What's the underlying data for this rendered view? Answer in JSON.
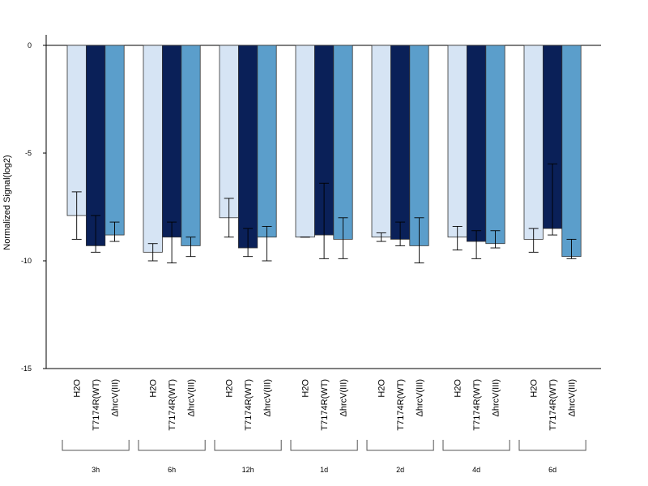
{
  "chart_data": {
    "type": "bar",
    "ylabel": "Normalized Signal(log2)",
    "ylim": [
      -15,
      0.5
    ],
    "yticks": [
      0,
      -5,
      -10,
      -15
    ],
    "grid": false,
    "legend": "none",
    "groups": [
      "3h",
      "6h",
      "12h",
      "1d",
      "2d",
      "4d",
      "6d"
    ],
    "series": [
      {
        "name": "H2O",
        "color": "#d6e4f4",
        "values": [
          -7.9,
          -9.6,
          -8.0,
          -8.9,
          -8.9,
          -8.9,
          -9.0
        ],
        "err_low": [
          -9.0,
          -10.0,
          -8.9,
          -8.9,
          -9.1,
          -9.5,
          -9.6
        ],
        "err_high": [
          -6.8,
          -9.2,
          -7.1,
          -8.9,
          -8.7,
          -8.4,
          -8.5
        ]
      },
      {
        "name": "T7174R(WT)",
        "color": "#0a2058",
        "values": [
          -9.3,
          -8.9,
          -9.4,
          -8.8,
          -9.0,
          -9.1,
          -8.5
        ],
        "err_low": [
          -9.6,
          -10.1,
          -9.8,
          -9.9,
          -9.3,
          -9.9,
          -8.8
        ],
        "err_high": [
          -7.9,
          -8.2,
          -8.5,
          -6.4,
          -8.2,
          -8.6,
          -5.5
        ]
      },
      {
        "name": "ΔhrcV(III)",
        "color": "#5b9ecb",
        "values": [
          -8.8,
          -9.3,
          -8.9,
          -9.0,
          -9.3,
          -9.2,
          -9.8
        ],
        "err_low": [
          -9.1,
          -9.8,
          -10.0,
          -9.9,
          -10.1,
          -9.4,
          -9.9
        ],
        "err_high": [
          -8.2,
          -8.9,
          -8.4,
          -8.0,
          -8.0,
          -8.6,
          -9.0
        ]
      }
    ]
  }
}
